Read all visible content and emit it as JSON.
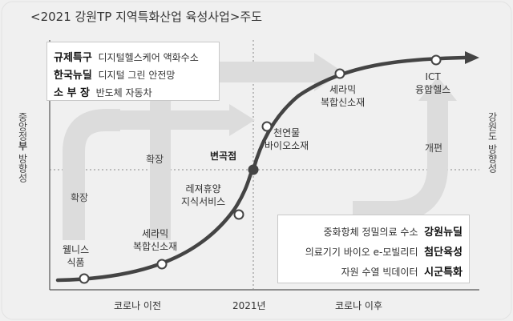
{
  "title": "<2021 강원TP 지역특화산업 육성사업>주도",
  "left_label_prefix": "중앙정",
  "left_label_bold": "부",
  "left_label_suffix": " 방향성",
  "right_label": "강원도 방향성",
  "x_axis": [
    "코로나 이전",
    "2021년",
    "코로나 이후"
  ],
  "inflection_label": "변곡점",
  "flow_labels": [
    "확장",
    "확장",
    "개편"
  ],
  "nodes": [
    {
      "label_line1": "웰니스",
      "label_line2": "식품"
    },
    {
      "label_line1": "세라믹",
      "label_line2": "복합신소재"
    },
    {
      "label_line1": "레져휴양",
      "label_line2": "지식서비스"
    },
    {
      "label_line1": "천연물",
      "label_line2": "바이오소재"
    },
    {
      "label_line1": "세라믹",
      "label_line2": "복합신소재"
    },
    {
      "label_line1": "ICT",
      "label_line2": "융합헬스"
    }
  ],
  "central_policies": [
    {
      "key": "규제특구",
      "value": "디지털헬스케어 액화수소"
    },
    {
      "key": "한국뉴딜",
      "value": "디지털 그린 안전망"
    },
    {
      "key": "소 부 장",
      "value": "반도체 자동차"
    }
  ],
  "gangwon_policies": [
    {
      "value": "중화항체 정밀의료 수소",
      "key": "강원뉴딜"
    },
    {
      "value": "의료기기 바이오 e-모빌리티",
      "key": "첨단육성"
    },
    {
      "value": "자원 수열 빅데이터",
      "key": "시군특화"
    }
  ],
  "colors": {
    "background": "#f0f0f0",
    "arrow": "#dcdcdc",
    "curve": "#444444",
    "box_border": "#c8c8c8"
  }
}
